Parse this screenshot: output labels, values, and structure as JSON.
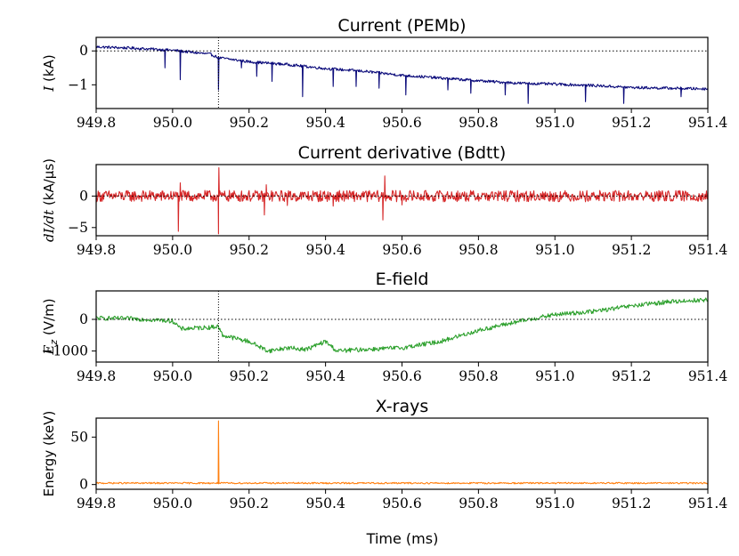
{
  "figure": {
    "xlabel": "Time (ms)"
  },
  "chart_data": [
    {
      "type": "line",
      "title": "Current (PEMb)",
      "ylabel": "I (kA)",
      "ylabel_math": "I",
      "ylabel_unit": " (kA)",
      "xlim": [
        949.8,
        951.4
      ],
      "ylim": [
        -1.7,
        0.4
      ],
      "x_ticks": [
        949.8,
        950.0,
        950.2,
        950.4,
        950.6,
        950.8,
        951.0,
        951.2,
        951.4
      ],
      "x_tick_labels": [
        "949.8",
        "950.0",
        "950.2",
        "950.4",
        "950.6",
        "950.8",
        "951.0",
        "951.2",
        "951.4"
      ],
      "y_ticks": [
        0,
        -1
      ],
      "y_tick_labels": [
        "0",
        "−1"
      ],
      "marker_x": 950.12,
      "zero_line": true,
      "marker_line": true,
      "series": [
        {
          "name": "PEMb current",
          "color": "#0a0a7a",
          "noise": 0.04,
          "x": [
            949.8,
            949.9,
            950.0,
            950.1,
            950.12,
            950.2,
            950.3,
            950.4,
            950.5,
            950.6,
            950.7,
            950.8,
            950.9,
            951.0,
            951.1,
            951.2,
            951.3,
            951.4
          ],
          "y": [
            0.12,
            0.08,
            0.02,
            -0.1,
            -0.2,
            -0.32,
            -0.4,
            -0.52,
            -0.6,
            -0.72,
            -0.8,
            -0.88,
            -0.95,
            -0.98,
            -1.02,
            -1.08,
            -1.1,
            -1.12
          ],
          "spikes": [
            {
              "x": 949.98,
              "y": -0.5
            },
            {
              "x": 950.02,
              "y": -0.85
            },
            {
              "x": 950.12,
              "y": -1.15
            },
            {
              "x": 950.18,
              "y": -0.5
            },
            {
              "x": 950.22,
              "y": -0.75
            },
            {
              "x": 950.26,
              "y": -0.9
            },
            {
              "x": 950.34,
              "y": -1.35
            },
            {
              "x": 950.42,
              "y": -1.05
            },
            {
              "x": 950.48,
              "y": -1.05
            },
            {
              "x": 950.54,
              "y": -1.1
            },
            {
              "x": 950.61,
              "y": -1.3
            },
            {
              "x": 950.72,
              "y": -1.15
            },
            {
              "x": 950.78,
              "y": -1.25
            },
            {
              "x": 950.87,
              "y": -1.3
            },
            {
              "x": 950.93,
              "y": -1.55
            },
            {
              "x": 951.08,
              "y": -1.5
            },
            {
              "x": 951.18,
              "y": -1.55
            },
            {
              "x": 951.33,
              "y": -1.35
            }
          ]
        }
      ]
    },
    {
      "type": "line",
      "title": "Current derivative (Bdtt)",
      "ylabel": "dI/dt (kA/μs)",
      "ylabel_math": "dI/dt",
      "ylabel_unit": " (kA/μs)",
      "xlim": [
        949.8,
        951.4
      ],
      "ylim": [
        -6.3,
        5.0
      ],
      "x_ticks": [
        949.8,
        950.0,
        950.2,
        950.4,
        950.6,
        950.8,
        951.0,
        951.2,
        951.4
      ],
      "x_tick_labels": [
        "949.8",
        "950.0",
        "950.2",
        "950.4",
        "950.6",
        "950.8",
        "951.0",
        "951.2",
        "951.4"
      ],
      "y_ticks": [
        0,
        -5
      ],
      "y_tick_labels": [
        "0",
        "−5"
      ],
      "marker_x": null,
      "zero_line": true,
      "marker_line": false,
      "series": [
        {
          "name": "Bdtt",
          "color": "#d62728",
          "noise": 0.9,
          "x": [
            949.8,
            951.4
          ],
          "y": [
            0,
            0
          ],
          "spikes": [
            {
              "x": 950.015,
              "y": -5.6
            },
            {
              "x": 950.02,
              "y": 2.1
            },
            {
              "x": 950.12,
              "y": -6.0
            },
            {
              "x": 950.121,
              "y": 4.5
            },
            {
              "x": 950.24,
              "y": -3.0
            },
            {
              "x": 950.245,
              "y": 1.8
            },
            {
              "x": 950.55,
              "y": -3.8
            },
            {
              "x": 950.555,
              "y": 3.2
            },
            {
              "x": 950.3,
              "y": -1.5
            },
            {
              "x": 950.42,
              "y": -1.6
            },
            {
              "x": 950.6,
              "y": -1.4
            }
          ]
        }
      ]
    },
    {
      "type": "line",
      "title": "E-field",
      "ylabel": "E_z (V/m)",
      "ylabel_math": "E",
      "ylabel_sub": "z",
      "ylabel_unit": " (V/m)",
      "xlim": [
        949.8,
        951.4
      ],
      "ylim": [
        -1350,
        900
      ],
      "x_ticks": [
        949.8,
        950.0,
        950.2,
        950.4,
        950.6,
        950.8,
        951.0,
        951.2,
        951.4
      ],
      "x_tick_labels": [
        "949.8",
        "950.0",
        "950.2",
        "950.4",
        "950.6",
        "950.8",
        "951.0",
        "951.2",
        "951.4"
      ],
      "y_ticks": [
        0,
        -1000
      ],
      "y_tick_labels": [
        "0",
        "−1000"
      ],
      "marker_x": 950.12,
      "zero_line": true,
      "marker_line": true,
      "series": [
        {
          "name": "E_z",
          "color": "#2ca02c",
          "noise": 70,
          "x": [
            949.8,
            949.9,
            950.0,
            950.01,
            950.02,
            950.1,
            950.12,
            950.13,
            950.2,
            950.25,
            950.3,
            950.35,
            950.4,
            950.43,
            950.5,
            950.6,
            950.7,
            950.8,
            950.9,
            951.0,
            951.1,
            951.2,
            951.3,
            951.4
          ],
          "y": [
            40,
            20,
            -50,
            -150,
            -300,
            -250,
            -220,
            -500,
            -700,
            -1000,
            -900,
            -950,
            -700,
            -1000,
            -950,
            -900,
            -700,
            -350,
            -80,
            150,
            250,
            420,
            560,
            620
          ],
          "spikes": []
        }
      ]
    },
    {
      "type": "line",
      "title": "X-rays",
      "ylabel": "Energy (keV)",
      "ylabel_math": "",
      "ylabel_unit": "Energy (keV)",
      "xlim": [
        949.8,
        951.4
      ],
      "ylim": [
        -5,
        70
      ],
      "x_ticks": [
        949.8,
        950.0,
        950.2,
        950.4,
        950.6,
        950.8,
        951.0,
        951.2,
        951.4
      ],
      "x_tick_labels": [
        "949.8",
        "950.0",
        "950.2",
        "950.4",
        "950.6",
        "950.8",
        "951.0",
        "951.2",
        "951.4"
      ],
      "y_ticks": [
        0,
        50
      ],
      "y_tick_labels": [
        "0",
        "50"
      ],
      "marker_x": null,
      "zero_line": false,
      "marker_line": false,
      "series": [
        {
          "name": "X-ray energy",
          "color": "#ff7f0e",
          "noise": 0.8,
          "x": [
            949.8,
            951.4
          ],
          "y": [
            1.5,
            1.5
          ],
          "spikes": [
            {
              "x": 950.12,
              "y": 67
            }
          ]
        }
      ]
    }
  ]
}
